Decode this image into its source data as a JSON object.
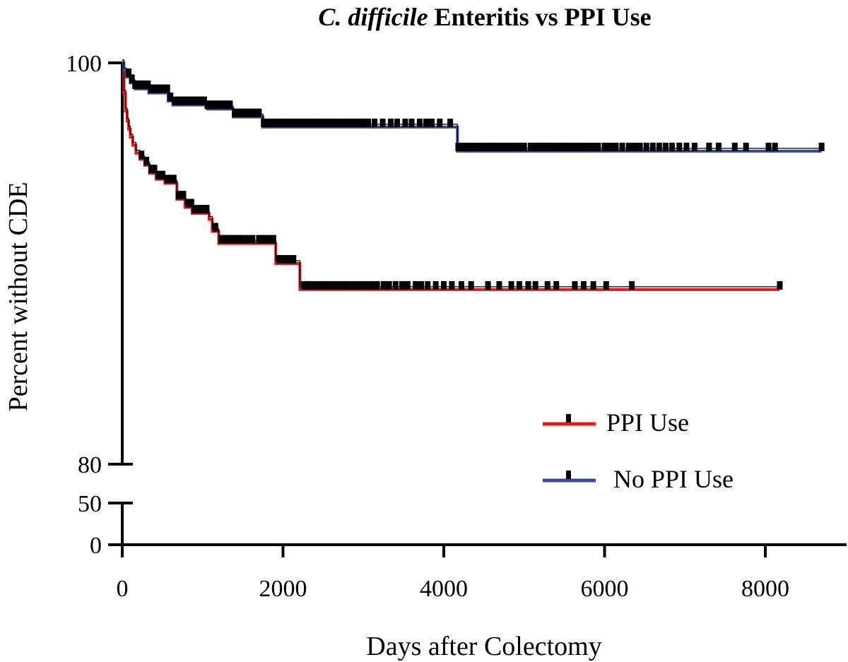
{
  "chart_data": {
    "type": "line",
    "subtype": "kaplan-meier",
    "title": {
      "italic_part": "C. difficile",
      "rest": "Enteritis vs PPI Use"
    },
    "xlabel": "Days after Colectomy",
    "ylabel": "Percent without CDE",
    "xlim": [
      0,
      8800
    ],
    "x_ticks": [
      0,
      2000,
      4000,
      6000,
      8000
    ],
    "x_tick_labels": [
      "0",
      "2000",
      "4000",
      "6000",
      "8000"
    ],
    "y_axis_break": true,
    "y_upper_segment": {
      "range": [
        80,
        100
      ],
      "ticks": [
        80,
        100
      ],
      "tick_labels": [
        "80",
        "100"
      ]
    },
    "y_lower_segment": {
      "range": [
        0,
        50
      ],
      "ticks": [
        0,
        50
      ],
      "tick_labels": [
        "0",
        "50"
      ]
    },
    "legend_position": "bottom-right",
    "grid": false,
    "series": [
      {
        "name": "PPI Use",
        "color": "#e31a1c",
        "steps": [
          [
            0,
            100
          ],
          [
            20,
            98.5
          ],
          [
            40,
            97.6
          ],
          [
            60,
            97.1
          ],
          [
            80,
            96.7
          ],
          [
            100,
            96.3
          ],
          [
            130,
            95.9
          ],
          [
            170,
            95.5
          ],
          [
            220,
            95.2
          ],
          [
            280,
            94.9
          ],
          [
            340,
            94.5
          ],
          [
            420,
            94.2
          ],
          [
            530,
            94.0
          ],
          [
            680,
            93.2
          ],
          [
            780,
            92.8
          ],
          [
            870,
            92.5
          ],
          [
            1080,
            92.2
          ],
          [
            1120,
            91.6
          ],
          [
            1200,
            91.0
          ],
          [
            1910,
            90.0
          ],
          [
            2210,
            88.7
          ],
          [
            8180,
            88.7
          ]
        ],
        "censor_x": [
          240,
          300,
          360,
          400,
          450,
          500,
          560,
          600,
          640,
          700,
          760,
          820,
          860,
          900,
          960,
          1000,
          1050,
          1160,
          1230,
          1280,
          1330,
          1380,
          1430,
          1480,
          1550,
          1620,
          1700,
          1760,
          1820,
          1880,
          1950,
          2000,
          2060,
          2130,
          2260,
          2310,
          2360,
          2420,
          2470,
          2520,
          2580,
          2640,
          2700,
          2760,
          2820,
          2890,
          2960,
          3030,
          3100,
          3170,
          3250,
          3320,
          3400,
          3480,
          3550,
          3650,
          3720,
          3800,
          3900,
          4000,
          4100,
          4220,
          4340,
          4550,
          4690,
          4840,
          4940,
          5050,
          5140,
          5290,
          5400,
          5630,
          5740,
          5860,
          6020,
          6340,
          8180
        ]
      },
      {
        "name": "No PPI Use",
        "color": "#3b4aa0",
        "steps": [
          [
            0,
            100
          ],
          [
            20,
            99.6
          ],
          [
            50,
            99.3
          ],
          [
            100,
            99.0
          ],
          [
            160,
            98.7
          ],
          [
            330,
            98.5
          ],
          [
            570,
            98.1
          ],
          [
            630,
            97.9
          ],
          [
            1060,
            97.7
          ],
          [
            1380,
            97.3
          ],
          [
            1750,
            96.8
          ],
          [
            4170,
            95.6
          ],
          [
            8700,
            95.6
          ]
        ],
        "censor_x": [
          80,
          120,
          160,
          200,
          240,
          280,
          320,
          360,
          400,
          440,
          480,
          520,
          560,
          600,
          650,
          700,
          740,
          780,
          820,
          860,
          900,
          940,
          980,
          1020,
          1060,
          1100,
          1140,
          1180,
          1220,
          1260,
          1300,
          1340,
          1400,
          1460,
          1520,
          1580,
          1640,
          1700,
          1760,
          1810,
          1860,
          1920,
          1980,
          2040,
          2100,
          2160,
          2220,
          2280,
          2340,
          2400,
          2460,
          2520,
          2580,
          2640,
          2700,
          2760,
          2820,
          2880,
          2940,
          3000,
          3060,
          3140,
          3240,
          3340,
          3420,
          3520,
          3600,
          3700,
          3780,
          3850,
          3950,
          4080,
          4180,
          4250,
          4310,
          4370,
          4440,
          4500,
          4560,
          4620,
          4680,
          4740,
          4800,
          4860,
          4930,
          5000,
          5080,
          5150,
          5220,
          5290,
          5360,
          5420,
          5480,
          5540,
          5600,
          5660,
          5720,
          5780,
          5850,
          5920,
          6000,
          6070,
          6140,
          6220,
          6300,
          6370,
          6440,
          6520,
          6600,
          6680,
          6760,
          6840,
          6930,
          7020,
          7120,
          7300,
          7420,
          7620,
          7760,
          8040,
          8120,
          8700
        ]
      }
    ]
  }
}
